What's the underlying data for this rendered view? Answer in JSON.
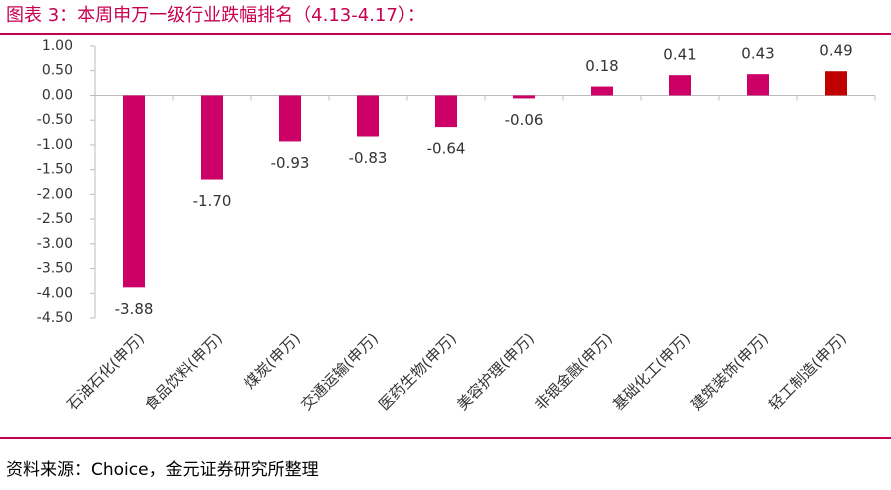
{
  "chart_data": {
    "type": "bar",
    "title": "图表 3：本周申万一级行业跌幅排名（4.13-4.17）：",
    "source": "资料来源：Choice，金元证券研究所整理",
    "categories": [
      "石油石化(申万)",
      "食品饮料(申万)",
      "煤炭(申万)",
      "交通运输(申万)",
      "医药生物(申万)",
      "美容护理(申万)",
      "非银金融(申万)",
      "基础化工(申万)",
      "建筑装饰(申万)",
      "轻工制造(申万)"
    ],
    "values": [
      -3.88,
      -1.7,
      -0.93,
      -0.83,
      -0.64,
      -0.06,
      0.18,
      0.41,
      0.43,
      0.49
    ],
    "value_labels": [
      "-3.88",
      "-1.70",
      "-0.93",
      "-0.83",
      "-0.64",
      "-0.06",
      "0.18",
      "0.41",
      "0.43",
      "0.49"
    ],
    "colors": [
      "#cc0066",
      "#cc0066",
      "#cc0066",
      "#cc0066",
      "#cc0066",
      "#cc0066",
      "#cc0066",
      "#cc0066",
      "#cc0066",
      "#c00000"
    ],
    "ylim": [
      -4.5,
      1.0
    ],
    "yticks": [
      {
        "value": 1.0,
        "label": "1.00"
      },
      {
        "value": 0.5,
        "label": "0.50"
      },
      {
        "value": 0,
        "label": "0.00"
      },
      {
        "value": -0.5,
        "label": "-0.50"
      },
      {
        "value": -1.0,
        "label": "-1.00"
      },
      {
        "value": -1.5,
        "label": "-1.50"
      },
      {
        "value": -2.0,
        "label": "-2.00"
      },
      {
        "value": -2.5,
        "label": "-2.50"
      },
      {
        "value": -3.0,
        "label": "-3.00"
      },
      {
        "value": -3.5,
        "label": "-3.50"
      },
      {
        "value": -4.0,
        "label": "-4.00"
      },
      {
        "value": -4.5,
        "label": "-4.50"
      }
    ],
    "grid": false
  }
}
